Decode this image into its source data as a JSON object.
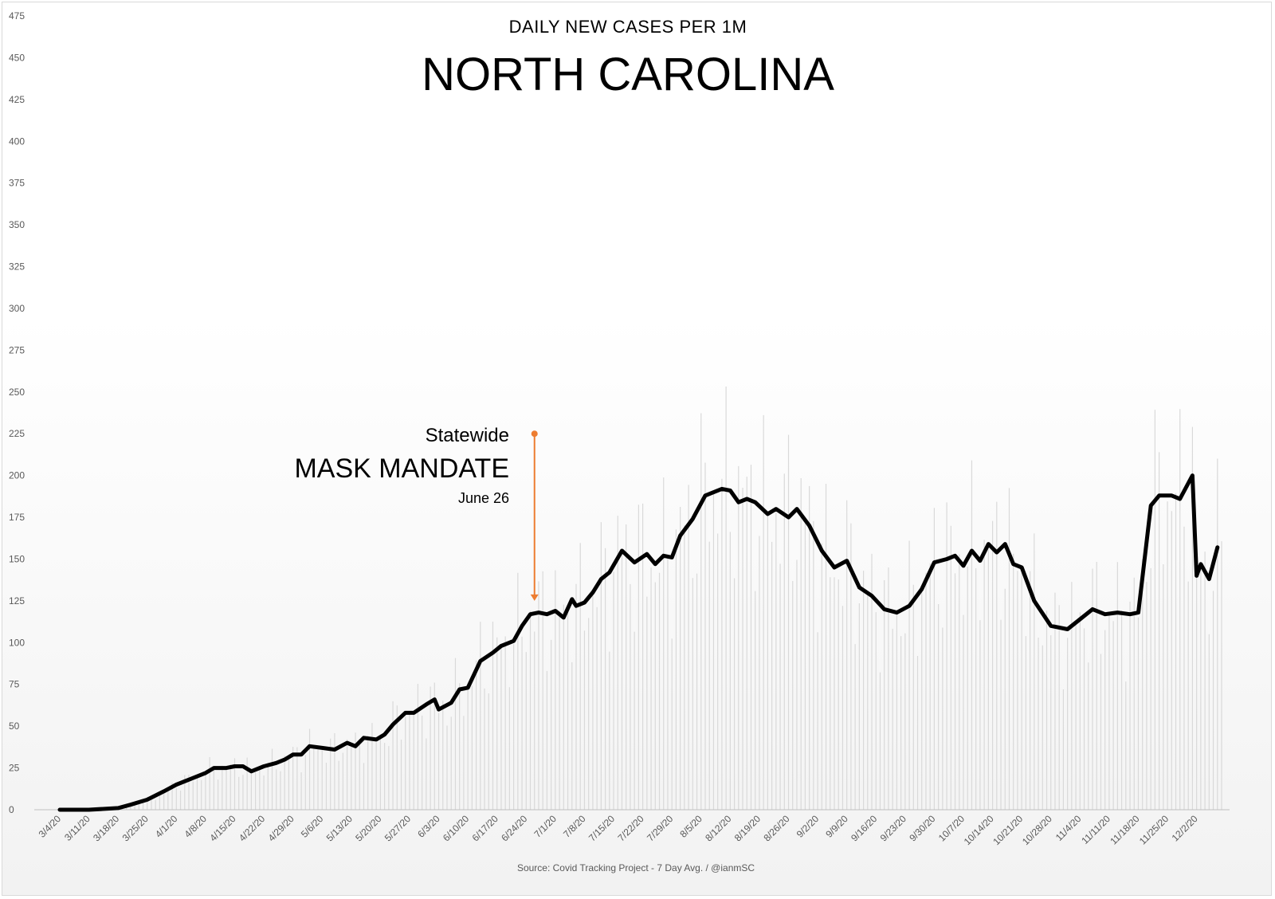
{
  "chart_data": {
    "type": "line",
    "subtitle": "DAILY NEW CASES PER 1M",
    "title": "NORTH CAROLINA",
    "source": "Source: Covid Tracking Project - 7 Day Avg. / @ianmSC",
    "ylim": [
      0,
      475
    ],
    "yticks": [
      0,
      25,
      50,
      75,
      100,
      125,
      150,
      175,
      200,
      225,
      250,
      275,
      300,
      325,
      350,
      375,
      400,
      425,
      450,
      475
    ],
    "x_range": [
      "2020-03-04",
      "2020-12-08"
    ],
    "xticks": [
      "3/4/20",
      "3/11/20",
      "3/18/20",
      "3/25/20",
      "4/1/20",
      "4/8/20",
      "4/15/20",
      "4/22/20",
      "4/29/20",
      "5/6/20",
      "5/13/20",
      "5/20/20",
      "5/27/20",
      "6/3/20",
      "6/10/20",
      "6/17/20",
      "6/24/20",
      "7/1/20",
      "7/8/20",
      "7/15/20",
      "7/22/20",
      "7/29/20",
      "8/5/20",
      "8/12/20",
      "8/19/20",
      "8/26/20",
      "9/2/20",
      "9/9/20",
      "9/16/20",
      "9/23/20",
      "9/30/20",
      "10/7/20",
      "10/14/20",
      "10/21/20",
      "10/28/20",
      "11/4/20",
      "11/11/20",
      "11/18/20",
      "11/25/20",
      "12/2/20"
    ],
    "series": [
      {
        "kind": "line",
        "color": "#000000",
        "points": [
          [
            "2020-03-04",
            0
          ],
          [
            "2020-03-11",
            0
          ],
          [
            "2020-03-18",
            1
          ],
          [
            "2020-03-21",
            3
          ],
          [
            "2020-03-25",
            6
          ],
          [
            "2020-03-29",
            11
          ],
          [
            "2020-04-01",
            15
          ],
          [
            "2020-04-05",
            19
          ],
          [
            "2020-04-08",
            22
          ],
          [
            "2020-04-10",
            25
          ],
          [
            "2020-04-13",
            25
          ],
          [
            "2020-04-15",
            26
          ],
          [
            "2020-04-17",
            26
          ],
          [
            "2020-04-19",
            23
          ],
          [
            "2020-04-22",
            26
          ],
          [
            "2020-04-25",
            28
          ],
          [
            "2020-04-27",
            30
          ],
          [
            "2020-04-29",
            33
          ],
          [
            "2020-05-01",
            33
          ],
          [
            "2020-05-03",
            38
          ],
          [
            "2020-05-06",
            37
          ],
          [
            "2020-05-09",
            36
          ],
          [
            "2020-05-12",
            40
          ],
          [
            "2020-05-14",
            38
          ],
          [
            "2020-05-16",
            43
          ],
          [
            "2020-05-19",
            42
          ],
          [
            "2020-05-21",
            45
          ],
          [
            "2020-05-23",
            51
          ],
          [
            "2020-05-26",
            58
          ],
          [
            "2020-05-28",
            58
          ],
          [
            "2020-05-31",
            63
          ],
          [
            "2020-06-02",
            66
          ],
          [
            "2020-06-03",
            60
          ],
          [
            "2020-06-06",
            64
          ],
          [
            "2020-06-08",
            72
          ],
          [
            "2020-06-10",
            73
          ],
          [
            "2020-06-13",
            89
          ],
          [
            "2020-06-16",
            94
          ],
          [
            "2020-06-18",
            98
          ],
          [
            "2020-06-21",
            101
          ],
          [
            "2020-06-23",
            110
          ],
          [
            "2020-06-25",
            117
          ],
          [
            "2020-06-27",
            118
          ],
          [
            "2020-06-29",
            117
          ],
          [
            "2020-07-01",
            119
          ],
          [
            "2020-07-03",
            115
          ],
          [
            "2020-07-05",
            126
          ],
          [
            "2020-07-06",
            122
          ],
          [
            "2020-07-08",
            124
          ],
          [
            "2020-07-10",
            130
          ],
          [
            "2020-07-12",
            138
          ],
          [
            "2020-07-14",
            142
          ],
          [
            "2020-07-17",
            155
          ],
          [
            "2020-07-20",
            148
          ],
          [
            "2020-07-23",
            153
          ],
          [
            "2020-07-25",
            147
          ],
          [
            "2020-07-27",
            152
          ],
          [
            "2020-07-29",
            151
          ],
          [
            "2020-07-31",
            164
          ],
          [
            "2020-08-03",
            174
          ],
          [
            "2020-08-06",
            188
          ],
          [
            "2020-08-10",
            192
          ],
          [
            "2020-08-12",
            191
          ],
          [
            "2020-08-14",
            184
          ],
          [
            "2020-08-16",
            186
          ],
          [
            "2020-08-18",
            184
          ],
          [
            "2020-08-21",
            177
          ],
          [
            "2020-08-23",
            180
          ],
          [
            "2020-08-26",
            175
          ],
          [
            "2020-08-28",
            180
          ],
          [
            "2020-08-31",
            170
          ],
          [
            "2020-09-03",
            155
          ],
          [
            "2020-09-06",
            145
          ],
          [
            "2020-09-09",
            149
          ],
          [
            "2020-09-12",
            133
          ],
          [
            "2020-09-15",
            128
          ],
          [
            "2020-09-18",
            120
          ],
          [
            "2020-09-21",
            118
          ],
          [
            "2020-09-24",
            122
          ],
          [
            "2020-09-27",
            132
          ],
          [
            "2020-09-30",
            148
          ],
          [
            "2020-10-03",
            150
          ],
          [
            "2020-10-05",
            152
          ],
          [
            "2020-10-07",
            146
          ],
          [
            "2020-10-09",
            155
          ],
          [
            "2020-10-11",
            149
          ],
          [
            "2020-10-13",
            159
          ],
          [
            "2020-10-15",
            154
          ],
          [
            "2020-10-17",
            159
          ],
          [
            "2020-10-19",
            147
          ],
          [
            "2020-10-21",
            145
          ],
          [
            "2020-10-24",
            125
          ],
          [
            "2020-10-28",
            110
          ],
          [
            "2020-11-01",
            108
          ],
          [
            "2020-11-04",
            114
          ],
          [
            "2020-11-07",
            120
          ],
          [
            "2020-11-10",
            117
          ],
          [
            "2020-11-13",
            118
          ],
          [
            "2020-11-16",
            117
          ],
          [
            "2020-11-18",
            118
          ],
          [
            "2020-11-21",
            182
          ],
          [
            "2020-11-23",
            188
          ],
          [
            "2020-11-26",
            188
          ],
          [
            "2020-11-28",
            186
          ],
          [
            "2020-12-01",
            200
          ],
          [
            "2020-12-02",
            140
          ],
          [
            "2020-12-03",
            147
          ],
          [
            "2020-12-05",
            138
          ],
          [
            "2020-12-07",
            157
          ]
        ]
      }
    ],
    "annotation": {
      "line1": "Statewide",
      "line2": "MASK MANDATE",
      "line3": "June 26",
      "date": "2020-06-26",
      "arrow_from_value": 225,
      "arrow_to_value": 125,
      "color": "#ED7D31"
    },
    "bar_color": "#d9d9d9",
    "grid": false,
    "legend": "none"
  }
}
